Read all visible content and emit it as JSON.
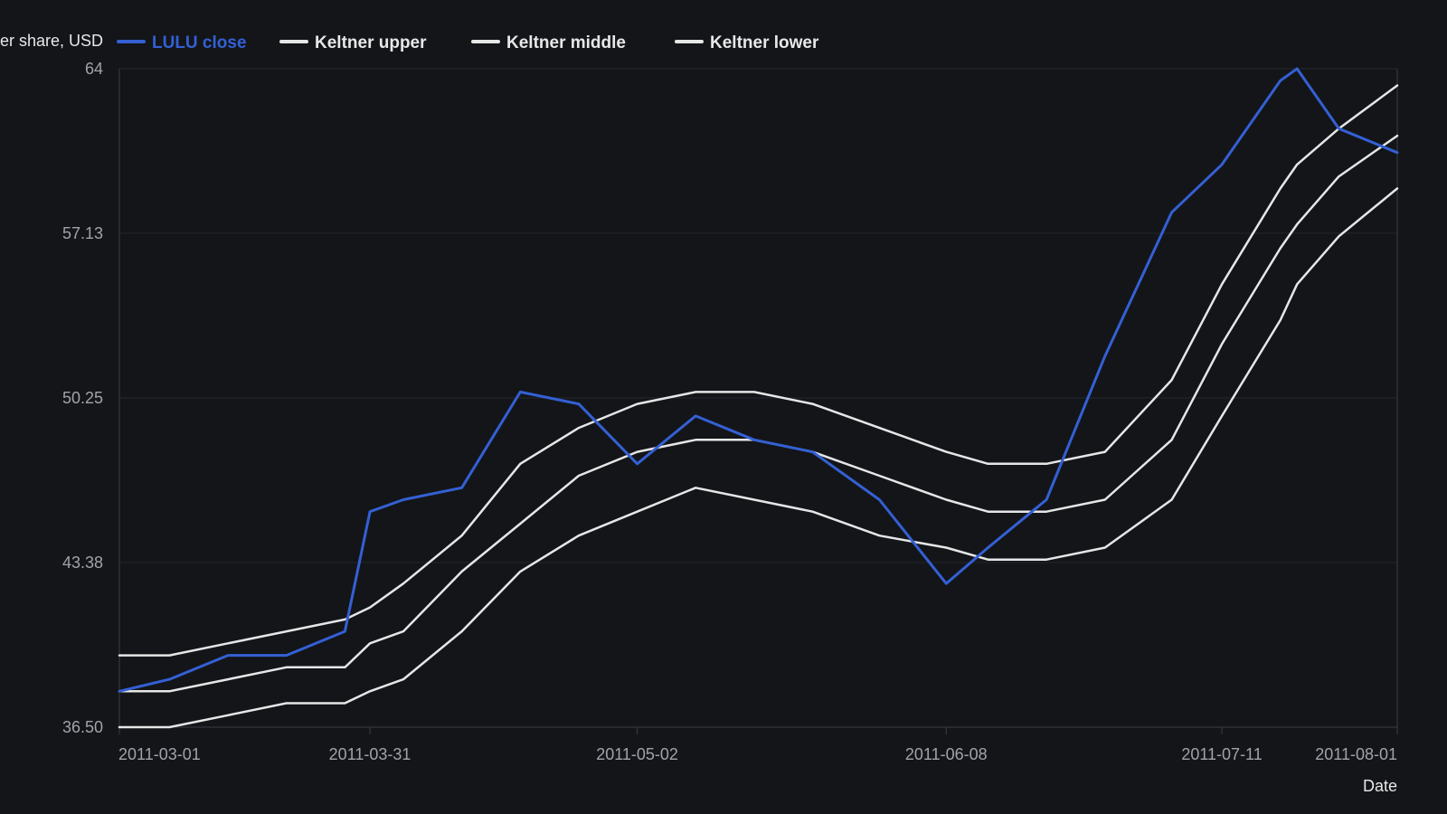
{
  "theme": {
    "background": "#131519",
    "plot_background": "#131519",
    "grid_color": "#23262c",
    "axis_color": "#3a3d44",
    "tick_text_color": "#a0a3aa",
    "legend_text_color": "#e8e8e8",
    "close_color": "#3460d4",
    "band_color": "#e6e6e6"
  },
  "chart_data": {
    "type": "line",
    "title": "",
    "xlabel": "Date",
    "ylabel": "Price per share, USD",
    "ylim": [
      36.5,
      64
    ],
    "y_ticks": [
      36.5,
      43.38,
      50.25,
      57.13,
      64
    ],
    "y_tick_labels": [
      "36.50",
      "43.38",
      "50.25",
      "57.13",
      "64"
    ],
    "x_tick_labels": [
      "2011-03-01",
      "2011-03-31",
      "2011-05-02",
      "2011-06-08",
      "2011-07-11",
      "2011-08-01"
    ],
    "x_ticks": [
      "2011-03-01",
      "2011-03-31",
      "2011-05-02",
      "2011-06-08",
      "2011-07-11",
      "2011-08-01"
    ],
    "x": [
      "2011-03-01",
      "2011-03-07",
      "2011-03-14",
      "2011-03-21",
      "2011-03-28",
      "2011-03-31",
      "2011-04-04",
      "2011-04-11",
      "2011-04-18",
      "2011-04-25",
      "2011-05-02",
      "2011-05-09",
      "2011-05-16",
      "2011-05-23",
      "2011-05-31",
      "2011-06-08",
      "2011-06-13",
      "2011-06-20",
      "2011-06-27",
      "2011-07-05",
      "2011-07-11",
      "2011-07-18",
      "2011-07-20",
      "2011-07-25",
      "2011-08-01"
    ],
    "grid": true,
    "legend_position": "top-left",
    "series": [
      {
        "name": "LULU close",
        "color": "#3460d4",
        "values": [
          38.0,
          38.5,
          39.5,
          39.5,
          40.5,
          45.5,
          46.0,
          46.5,
          50.5,
          50.0,
          47.5,
          49.5,
          48.5,
          48.0,
          46.0,
          42.5,
          44.0,
          46.0,
          52.0,
          58.0,
          60.0,
          63.5,
          64.0,
          61.5,
          60.5
        ]
      },
      {
        "name": "Keltner upper",
        "color": "#e6e6e6",
        "values": [
          39.5,
          39.5,
          40.0,
          40.5,
          41.0,
          41.5,
          42.5,
          44.5,
          47.5,
          49.0,
          50.0,
          50.5,
          50.5,
          50.0,
          49.0,
          48.0,
          47.5,
          47.5,
          48.0,
          51.0,
          55.0,
          59.0,
          60.0,
          61.5,
          63.3
        ]
      },
      {
        "name": "Keltner middle",
        "color": "#e6e6e6",
        "values": [
          38.0,
          38.0,
          38.5,
          39.0,
          39.0,
          40.0,
          40.5,
          43.0,
          45.0,
          47.0,
          48.0,
          48.5,
          48.5,
          48.0,
          47.0,
          46.0,
          45.5,
          45.5,
          46.0,
          48.5,
          52.5,
          56.5,
          57.5,
          59.5,
          61.2
        ]
      },
      {
        "name": "Keltner lower",
        "color": "#e6e6e6",
        "values": [
          36.5,
          36.5,
          37.0,
          37.5,
          37.5,
          38.0,
          38.5,
          40.5,
          43.0,
          44.5,
          45.5,
          46.5,
          46.0,
          45.5,
          44.5,
          44.0,
          43.5,
          43.5,
          44.0,
          46.0,
          49.5,
          53.5,
          55.0,
          57.0,
          59.0
        ]
      }
    ]
  }
}
